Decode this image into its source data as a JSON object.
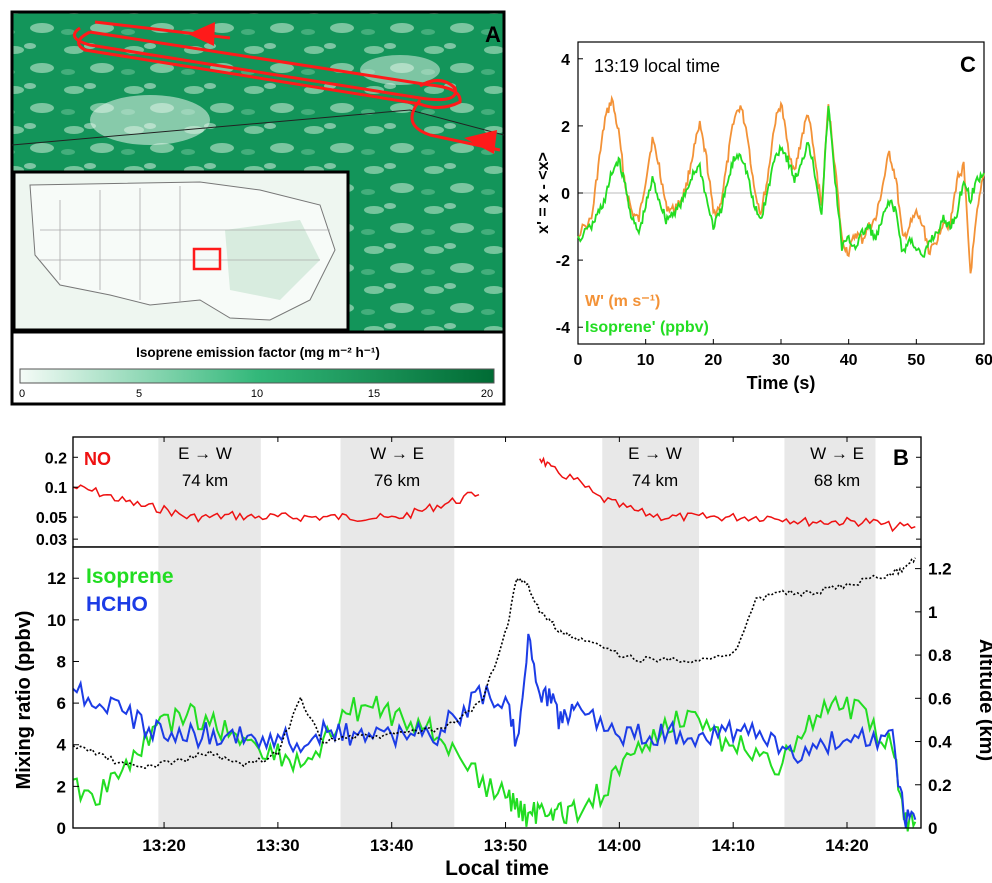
{
  "panel_a": {
    "letter": "A",
    "colorbar_title": "Isoprene emission factor (mg m⁻² h⁻¹)",
    "colorbar_ticks": [
      "0",
      "5",
      "10",
      "15",
      "20"
    ],
    "colors": {
      "map_dark": "#0f9150",
      "map_light": "#c9ead6",
      "flight_red": "#ff1a1a",
      "colorbar_low": "#f5fbf7",
      "colorbar_high": "#006b34"
    }
  },
  "panel_c": {
    "letter": "C",
    "annotation": "13:19 local time",
    "ylabel": "x' = x - <x>",
    "xlabel": "Time (s)",
    "legend": [
      "W' (m s⁻¹)",
      "Isoprene' (ppbv)"
    ]
  },
  "panel_b": {
    "letter": "B",
    "no_label": "NO",
    "iso_label": "Isoprene",
    "hcho_label": "HCHO",
    "ylabel_left": "Mixing ratio (ppbv)",
    "ylabel_right": "Altitude (km)",
    "xlabel": "Local time",
    "legs": [
      {
        "dir": "E → W",
        "dist": "74 km"
      },
      {
        "dir": "W → E",
        "dist": "76 km"
      },
      {
        "dir": "E → W",
        "dist": "74 km"
      },
      {
        "dir": "W → E",
        "dist": "68 km"
      }
    ]
  },
  "chart_data": [
    {
      "type": "line",
      "panel": "C",
      "xlim": [
        0,
        60
      ],
      "ylim": [
        -4.5,
        4.5
      ],
      "xticks": [
        0,
        10,
        20,
        30,
        40,
        50,
        60
      ],
      "yticks": [
        -4,
        -2,
        0,
        2,
        4
      ],
      "series": [
        {
          "name": "W' (m s⁻¹)",
          "color": "#f39237",
          "x": [
            0,
            2,
            3,
            4,
            5,
            6,
            7,
            8,
            9,
            10,
            11,
            12,
            13,
            14,
            15,
            16,
            17,
            18,
            19,
            20,
            21,
            22,
            23,
            24,
            25,
            26,
            27,
            28,
            29,
            30,
            31,
            32,
            33,
            34,
            35,
            36,
            37,
            38,
            39,
            40,
            41,
            42,
            43,
            44,
            45,
            46,
            47,
            48,
            49,
            50,
            51,
            52,
            53,
            54,
            55,
            56,
            57,
            58,
            59,
            60
          ],
          "values": [
            -1.2,
            -0.8,
            0.8,
            2.2,
            2.8,
            1.8,
            0.2,
            -0.6,
            -0.8,
            0.4,
            1.6,
            0.8,
            -0.4,
            -0.5,
            -0.3,
            0.2,
            1.2,
            2.0,
            1.0,
            -0.6,
            -0.4,
            0.8,
            2.2,
            2.6,
            1.8,
            0.2,
            -0.6,
            0.4,
            2.0,
            2.7,
            1.4,
            0.6,
            1.6,
            2.4,
            1.0,
            -0.4,
            2.6,
            0.8,
            -1.4,
            -1.8,
            -1.2,
            -1.4,
            -1.0,
            -0.8,
            0.2,
            1.2,
            0.4,
            -1.4,
            -1.0,
            -0.6,
            -1.0,
            -1.8,
            -1.4,
            -0.8,
            -1.0,
            0.4,
            0.8,
            -2.4,
            -0.6,
            0.6
          ]
        },
        {
          "name": "Isoprene' (ppbv)",
          "color": "#22dd22",
          "x": [
            0,
            2,
            3,
            4,
            5,
            6,
            7,
            8,
            9,
            10,
            11,
            12,
            13,
            14,
            15,
            16,
            17,
            18,
            19,
            20,
            21,
            22,
            23,
            24,
            25,
            26,
            27,
            28,
            29,
            30,
            31,
            32,
            33,
            34,
            35,
            36,
            37,
            38,
            39,
            40,
            41,
            42,
            43,
            44,
            45,
            46,
            47,
            48,
            49,
            50,
            51,
            52,
            53,
            54,
            55,
            56,
            57,
            58,
            59,
            60
          ],
          "values": [
            -1.4,
            -1.0,
            -0.6,
            -0.2,
            0.6,
            1.0,
            0.2,
            -0.8,
            -1.2,
            -0.4,
            0.4,
            -0.2,
            -0.8,
            -0.6,
            -0.4,
            0.0,
            0.6,
            0.8,
            -0.2,
            -1.0,
            -0.6,
            0.2,
            1.0,
            1.2,
            0.6,
            -0.4,
            -0.8,
            0.0,
            1.0,
            1.4,
            1.0,
            0.4,
            0.8,
            1.6,
            0.6,
            -0.6,
            2.6,
            0.4,
            -1.6,
            -1.4,
            -1.6,
            -1.2,
            -1.0,
            -1.4,
            -0.8,
            -0.2,
            -0.6,
            -1.8,
            -1.4,
            -1.6,
            -2.0,
            -1.4,
            -1.2,
            -0.8,
            -1.0,
            -0.6,
            0.4,
            -0.2,
            0.4,
            0.6
          ]
        }
      ]
    },
    {
      "type": "line",
      "panel": "B-top",
      "yscale": "log",
      "ylim": [
        0.025,
        0.32
      ],
      "yticks": [
        0.03,
        0.05,
        0.1,
        0.2
      ],
      "x_minutes_after_13": [
        12,
        14,
        16,
        18,
        20,
        22,
        24,
        26,
        28,
        30,
        32,
        34,
        36,
        38,
        40,
        42,
        44,
        46,
        48,
        50,
        52,
        53,
        54,
        56,
        58,
        60,
        62,
        64,
        66,
        68,
        70,
        72,
        74,
        76,
        78,
        80,
        82,
        84,
        86
      ],
      "series": [
        {
          "name": "NO",
          "color": "#ee1111",
          "values": [
            0.1,
            0.09,
            0.075,
            0.065,
            0.06,
            0.05,
            0.05,
            0.052,
            0.05,
            0.05,
            0.05,
            0.05,
            0.05,
            0.05,
            0.048,
            0.055,
            0.065,
            0.075,
            0.09,
            null,
            null,
            0.2,
            0.15,
            0.12,
            0.08,
            0.065,
            0.055,
            0.05,
            0.05,
            0.05,
            0.05,
            0.05,
            0.05,
            0.045,
            0.045,
            0.045,
            0.045,
            0.04,
            0.04
          ]
        }
      ]
    },
    {
      "type": "line",
      "panel": "B-bottom",
      "xlim": [
        "13:12",
        "13:26+60"
      ],
      "xticks": [
        "13:20",
        "13:30",
        "13:40",
        "13:50",
        "14:00",
        "14:10",
        "14:20"
      ],
      "ylim_left": [
        0,
        13.5
      ],
      "yticks_left": [
        0,
        2,
        4,
        6,
        8,
        10,
        12
      ],
      "ylim_right": [
        0,
        1.3
      ],
      "yticks_right": [
        0,
        0.2,
        0.4,
        0.6,
        0.8,
        1,
        1.2
      ],
      "x_minutes_after_13": [
        12,
        14,
        16,
        18,
        20,
        22,
        24,
        26,
        28,
        30,
        32,
        34,
        36,
        38,
        40,
        42,
        44,
        46,
        48,
        50,
        51,
        52,
        53,
        54,
        55,
        56,
        58,
        60,
        62,
        64,
        66,
        68,
        70,
        72,
        74,
        76,
        78,
        80,
        82,
        84,
        85,
        86
      ],
      "shaded_legs_minutes": [
        [
          19.5,
          28.5
        ],
        [
          35.5,
          45.5
        ],
        [
          58.5,
          67
        ],
        [
          74.5,
          82.5
        ]
      ],
      "series": [
        {
          "name": "Isoprene",
          "color": "#22dd22",
          "axis": "left",
          "values": [
            2.0,
            1.5,
            2.5,
            4.0,
            5.0,
            5.5,
            5.0,
            4.5,
            4.0,
            3.5,
            3.0,
            4.0,
            5.5,
            6.0,
            5.5,
            5.0,
            4.5,
            3.5,
            2.0,
            1.5,
            1.0,
            0.5,
            0.8,
            1.0,
            0.5,
            0.8,
            1.5,
            2.5,
            4.0,
            5.0,
            5.5,
            4.5,
            4.0,
            3.5,
            3.0,
            4.5,
            5.5,
            6.0,
            5.0,
            4.0,
            0.5,
            0.3
          ]
        },
        {
          "name": "HCHO",
          "color": "#1c3ce6",
          "axis": "left",
          "values": [
            6.5,
            6.2,
            5.5,
            5.0,
            4.5,
            4.5,
            4.5,
            4.5,
            4.2,
            4.5,
            4.2,
            4.5,
            4.5,
            4.5,
            4.5,
            4.5,
            4.5,
            5.5,
            6.5,
            6.0,
            4.0,
            9.0,
            6.5,
            6.0,
            5.0,
            6.0,
            5.0,
            4.5,
            4.5,
            4.5,
            4.5,
            4.5,
            4.5,
            4.5,
            4.0,
            3.5,
            4.0,
            4.5,
            4.0,
            4.5,
            0.5,
            0.4
          ]
        },
        {
          "name": "Altitude",
          "color": "#000000",
          "axis": "right",
          "style": "dotted",
          "values": [
            0.38,
            0.35,
            0.3,
            0.28,
            0.3,
            0.32,
            0.35,
            0.3,
            0.3,
            0.35,
            0.6,
            0.4,
            0.42,
            0.42,
            0.43,
            0.45,
            0.45,
            0.5,
            0.6,
            0.9,
            1.15,
            1.12,
            1.0,
            0.95,
            0.9,
            0.88,
            0.85,
            0.8,
            0.78,
            0.78,
            0.78,
            0.78,
            0.8,
            1.05,
            1.1,
            1.08,
            1.1,
            1.12,
            1.15,
            1.18,
            1.2,
            1.25
          ]
        }
      ]
    }
  ]
}
